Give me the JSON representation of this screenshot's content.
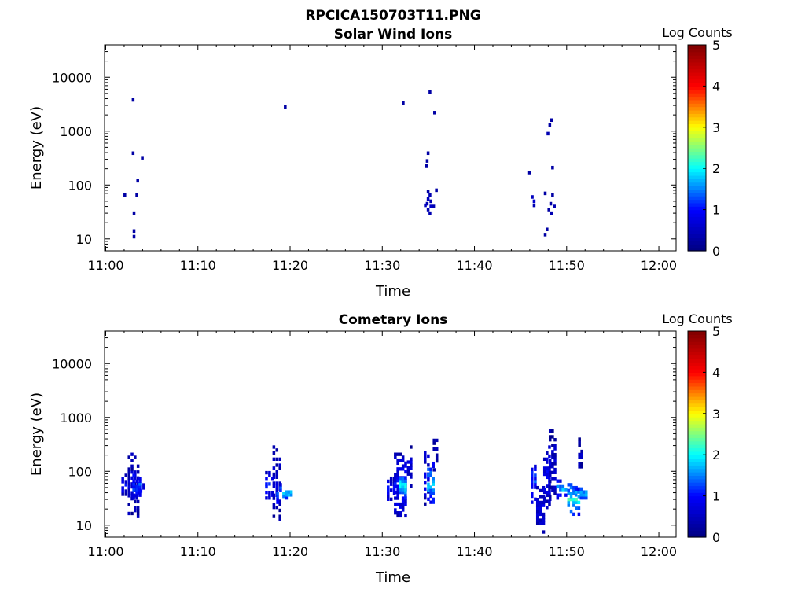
{
  "figure_title": "RPCICA150703T11.PNG",
  "colormap": [
    "#00007f",
    "#0000ff",
    "#00ffff",
    "#ffff00",
    "#ff0000",
    "#7f0000"
  ],
  "chart_data": [
    {
      "type": "heatmap",
      "title": "Solar Wind Ions",
      "xlabel": "Time",
      "ylabel": "Energy (eV)",
      "x_ticks": [
        "11:00",
        "11:10",
        "11:20",
        "11:30",
        "11:40",
        "11:50",
        "12:00"
      ],
      "x_range_min": [
        0,
        62
      ],
      "y_ticks": [
        "10",
        "100",
        "1000",
        "10000"
      ],
      "y_scale": "log",
      "y_range": [
        6,
        40000
      ],
      "colorbar": {
        "label": "Log Counts",
        "range": [
          0,
          5
        ],
        "ticks": [
          "0",
          "1",
          "2",
          "3",
          "4",
          "5"
        ]
      },
      "cells": [
        [
          2.2,
          65,
          0.3
        ],
        [
          3.1,
          3800,
          0.3
        ],
        [
          3.1,
          390,
          0.3
        ],
        [
          3.6,
          120,
          0.3
        ],
        [
          3.5,
          65,
          0.3
        ],
        [
          4.1,
          320,
          0.3
        ],
        [
          3.2,
          30,
          0.3
        ],
        [
          3.2,
          14,
          0.3
        ],
        [
          3.2,
          11,
          0.3
        ],
        [
          19.6,
          2800,
          0.3
        ],
        [
          32.4,
          3300,
          0.3
        ],
        [
          35.3,
          5300,
          0.3
        ],
        [
          35.8,
          2200,
          0.3
        ],
        [
          35.1,
          390,
          0.3
        ],
        [
          35.0,
          280,
          0.3
        ],
        [
          34.9,
          230,
          0.3
        ],
        [
          35.1,
          75,
          0.3
        ],
        [
          35.3,
          65,
          0.4
        ],
        [
          35.1,
          55,
          0.5
        ],
        [
          35.4,
          50,
          0.4
        ],
        [
          35.0,
          45,
          0.4
        ],
        [
          34.8,
          42,
          0.5
        ],
        [
          35.4,
          40,
          0.6
        ],
        [
          35.1,
          35,
          0.4
        ],
        [
          35.3,
          30,
          0.4
        ],
        [
          35.7,
          40,
          0.4
        ],
        [
          36.0,
          80,
          0.3
        ],
        [
          46.1,
          170,
          0.3
        ],
        [
          46.4,
          60,
          0.5
        ],
        [
          46.6,
          50,
          0.6
        ],
        [
          46.6,
          42,
          0.4
        ],
        [
          47.8,
          70,
          0.3
        ],
        [
          48.1,
          900,
          0.4
        ],
        [
          48.3,
          1300,
          0.3
        ],
        [
          48.5,
          1600,
          0.3
        ],
        [
          48.6,
          210,
          0.3
        ],
        [
          48.4,
          45,
          0.3
        ],
        [
          48.2,
          35,
          0.3
        ],
        [
          48.5,
          30,
          0.4
        ],
        [
          48.8,
          40,
          0.4
        ],
        [
          48.0,
          15,
          0.3
        ],
        [
          47.8,
          12,
          0.3
        ],
        [
          48.6,
          65,
          0.3
        ]
      ]
    },
    {
      "type": "heatmap",
      "title": "Cometary Ions",
      "xlabel": "Time",
      "ylabel": "Energy (eV)",
      "x_ticks": [
        "11:00",
        "11:10",
        "11:20",
        "11:30",
        "11:40",
        "11:50",
        "12:00"
      ],
      "x_range_min": [
        0,
        62
      ],
      "y_ticks": [
        "10",
        "100",
        "1000",
        "10000"
      ],
      "y_scale": "log",
      "y_range": [
        6,
        40000
      ],
      "colorbar": {
        "label": "Log Counts",
        "range": [
          0,
          5
        ],
        "ticks": [
          "0",
          "1",
          "2",
          "3",
          "4",
          "5"
        ]
      },
      "clusters": [
        {
          "t": [
            1.8,
            2.5
          ],
          "e": [
            35,
            90
          ],
          "c": 0.9
        },
        {
          "t": [
            2.5,
            3.8
          ],
          "e": [
            12,
            220
          ],
          "c": 0.6
        },
        {
          "t": [
            3.0,
            4.0
          ],
          "e": [
            30,
            100
          ],
          "c": 1.3
        },
        {
          "t": [
            3.8,
            4.4
          ],
          "e": [
            35,
            60
          ],
          "c": 0.9
        },
        {
          "t": [
            17.4,
            18.4
          ],
          "e": [
            30,
            100
          ],
          "c": 1.1
        },
        {
          "t": [
            18.2,
            19.2
          ],
          "e": [
            12,
            300
          ],
          "c": 0.6
        },
        {
          "t": [
            18.6,
            19.6
          ],
          "e": [
            25,
            60
          ],
          "c": 1.6
        },
        {
          "t": [
            19.6,
            20.4
          ],
          "e": [
            30,
            50
          ],
          "c": 1.9
        },
        {
          "t": [
            30.6,
            31.6
          ],
          "e": [
            25,
            90
          ],
          "c": 0.9
        },
        {
          "t": [
            31.4,
            32.8
          ],
          "e": [
            14,
            220
          ],
          "c": 1.0
        },
        {
          "t": [
            31.9,
            32.8
          ],
          "e": [
            30,
            100
          ],
          "c": 2.0
        },
        {
          "t": [
            32.8,
            33.4
          ],
          "e": [
            50,
            300
          ],
          "c": 0.7
        },
        {
          "t": [
            34.6,
            35.3
          ],
          "e": [
            18,
            300
          ],
          "c": 0.8
        },
        {
          "t": [
            35.0,
            35.8
          ],
          "e": [
            25,
            150
          ],
          "c": 1.8
        },
        {
          "t": [
            35.6,
            36.2
          ],
          "e": [
            100,
            400
          ],
          "c": 0.5
        },
        {
          "t": [
            46.2,
            46.9
          ],
          "e": [
            25,
            170
          ],
          "c": 1.2
        },
        {
          "t": [
            46.8,
            47.8
          ],
          "e": [
            7,
            60
          ],
          "c": 0.7
        },
        {
          "t": [
            47.6,
            48.4
          ],
          "e": [
            20,
            300
          ],
          "c": 0.9
        },
        {
          "t": [
            48.2,
            49.0
          ],
          "e": [
            25,
            600
          ],
          "c": 0.6
        },
        {
          "t": [
            49.0,
            50.2
          ],
          "e": [
            30,
            70
          ],
          "c": 1.7
        },
        {
          "t": [
            50.2,
            51.6
          ],
          "e": [
            15,
            60
          ],
          "c": 2.1
        },
        {
          "t": [
            51.0,
            52.4
          ],
          "e": [
            30,
            50
          ],
          "c": 1.9
        },
        {
          "t": [
            51.4,
            51.9
          ],
          "e": [
            100,
            420
          ],
          "c": 0.5
        }
      ]
    }
  ]
}
